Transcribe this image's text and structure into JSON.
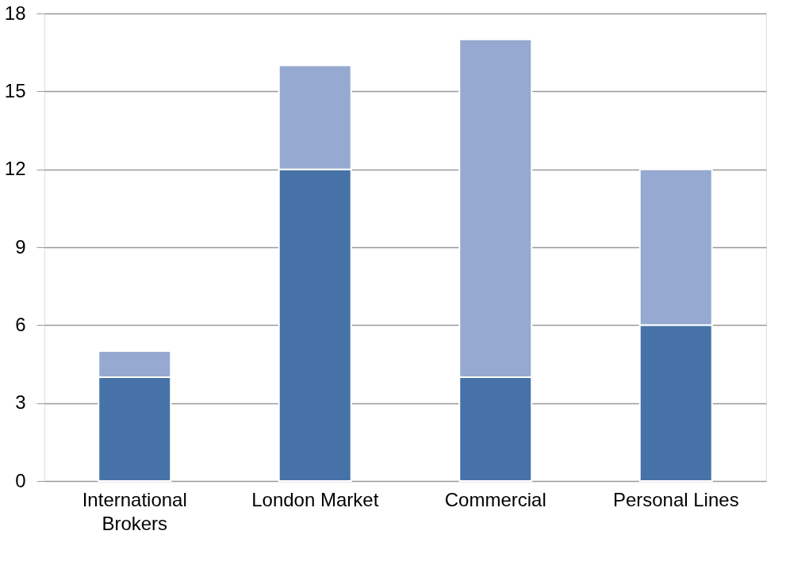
{
  "chart_data": {
    "type": "bar",
    "stacked": true,
    "categories": [
      "International Brokers",
      "London Market",
      "Commercial",
      "Personal Lines"
    ],
    "series": [
      {
        "color": "#4672a8",
        "values": [
          4,
          12,
          4,
          6
        ]
      },
      {
        "color": "#95a9d1",
        "values": [
          1,
          4,
          13,
          6
        ]
      }
    ],
    "ylim": [
      0,
      18
    ],
    "yticks": [
      0,
      3,
      6,
      9,
      12,
      15,
      18
    ],
    "grid": "y",
    "legend": false
  }
}
